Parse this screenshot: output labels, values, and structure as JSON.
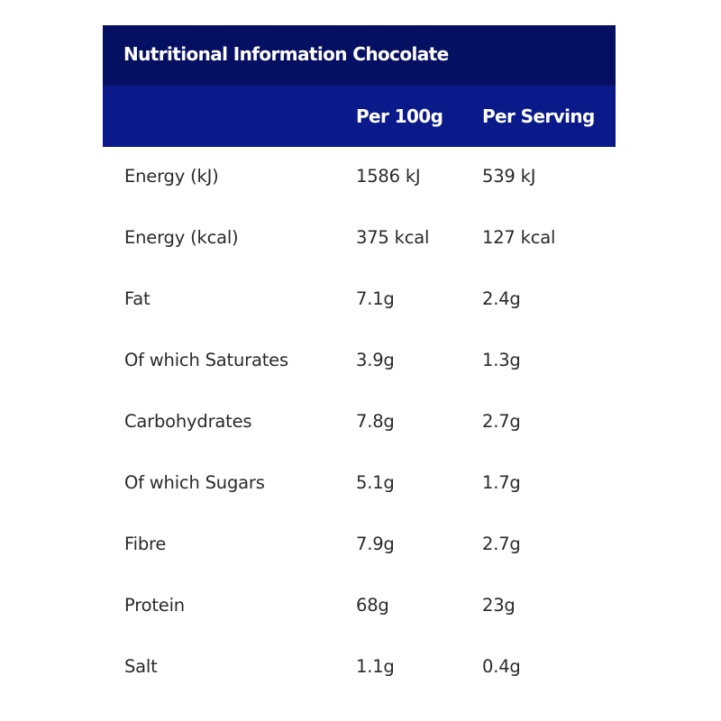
{
  "table": {
    "title": "Nutritional Information Chocolate",
    "columns": {
      "label": "",
      "per_100g": "Per 100g",
      "per_serving": "Per Serving"
    },
    "rows": [
      {
        "label": "Energy (kJ)",
        "per_100g": "1586 kJ",
        "per_serving": "539 kJ"
      },
      {
        "label": "Energy (kcal)",
        "per_100g": "375 kcal",
        "per_serving": "127 kcal"
      },
      {
        "label": "Fat",
        "per_100g": "7.1g",
        "per_serving": "2.4g"
      },
      {
        "label": "Of which Saturates",
        "per_100g": "3.9g",
        "per_serving": "1.3g"
      },
      {
        "label": "Carbohydrates",
        "per_100g": "7.8g",
        "per_serving": "2.7g"
      },
      {
        "label": "Of which Sugars",
        "per_100g": "5.1g",
        "per_serving": "1.7g"
      },
      {
        "label": "Fibre",
        "per_100g": "7.9g",
        "per_serving": "2.7g"
      },
      {
        "label": "Protein",
        "per_100g": "68g",
        "per_serving": "23g"
      },
      {
        "label": "Salt",
        "per_100g": "1.1g",
        "per_serving": "0.4g"
      }
    ]
  },
  "colors": {
    "title_bg": "#061062",
    "header_bg": "#0a1a8a",
    "header_text": "#ffffff",
    "body_text": "#2a2a2a",
    "body_bg": "#ffffff"
  }
}
